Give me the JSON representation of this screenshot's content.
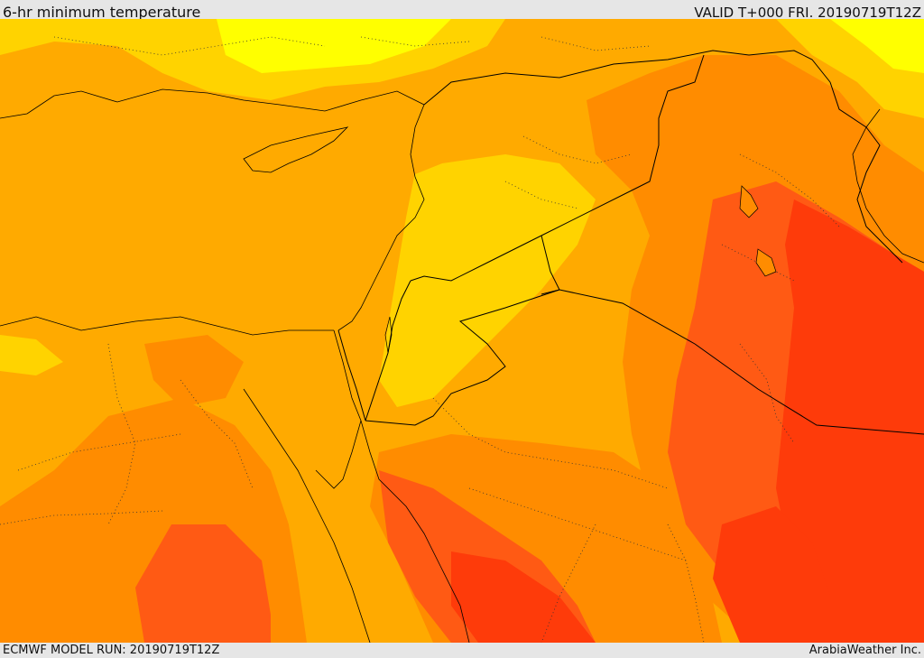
{
  "header": {
    "title": "6-hr minimum temperature",
    "valid_text": "VALID T+000 FRI. 20190719T12Z"
  },
  "footer": {
    "model_run": "ECMWF MODEL RUN: 20190719T12Z",
    "credit": "ArabiaWeather Inc."
  },
  "colors": {
    "deep_orange_red": "#fe3b0a",
    "red_orange": "#ff5a14",
    "orange": "#ff8c00",
    "light_orange": "#ffaa00",
    "yellow_orange": "#ffd300",
    "yellow": "#ffff00",
    "border_line": "#000000",
    "frame_gray": "#e6e6e6"
  },
  "map": {
    "product": "6-hr minimum temperature",
    "borders": "country boundaries and coastlines in black",
    "subnational": "dotted admin boundaries"
  }
}
